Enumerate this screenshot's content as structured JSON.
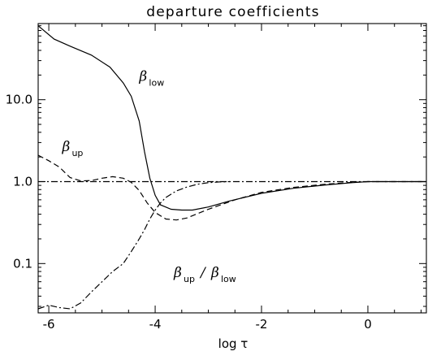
{
  "chart_data": {
    "type": "line",
    "title": "departure coefficients",
    "xlabel": "log τ",
    "ylabel": "",
    "xlim": [
      -6.2,
      1.1
    ],
    "ylim": [
      0.025,
      85
    ],
    "yscale": "log",
    "x_ticks": [
      "-6",
      "-4",
      "-2",
      "0"
    ],
    "x_tick_values": [
      -6,
      -4,
      -2,
      0
    ],
    "y_ticks": [
      "0.1",
      "1.0",
      "10.0"
    ],
    "y_tick_values": [
      0.1,
      1.0,
      10.0
    ],
    "grid": false,
    "series": [
      {
        "name": "β_low",
        "style": "solid",
        "x": [
          -6.2,
          -5.9,
          -5.6,
          -5.2,
          -4.85,
          -4.6,
          -4.45,
          -4.3,
          -4.2,
          -4.1,
          -4.0,
          -3.9,
          -3.7,
          -3.5,
          -3.3,
          -3.0,
          -2.6,
          -2.0,
          -1.4,
          -0.8,
          -0.3,
          0.0,
          0.5,
          1.1
        ],
        "y": [
          80,
          55,
          45,
          35,
          25,
          16,
          11,
          5.5,
          2.3,
          1.1,
          0.68,
          0.52,
          0.46,
          0.45,
          0.45,
          0.49,
          0.58,
          0.72,
          0.83,
          0.91,
          0.97,
          1.0,
          1.0,
          1.0
        ]
      },
      {
        "name": "β_up",
        "style": "dashed",
        "x": [
          -6.2,
          -6.0,
          -5.8,
          -5.6,
          -5.4,
          -5.2,
          -5.0,
          -4.8,
          -4.6,
          -4.45,
          -4.3,
          -4.15,
          -4.0,
          -3.8,
          -3.6,
          -3.4,
          -3.0,
          -2.5,
          -2.0,
          -1.4,
          -0.8,
          -0.3,
          0.0,
          0.5,
          1.1
        ],
        "y": [
          2.1,
          1.8,
          1.5,
          1.12,
          1.02,
          1.03,
          1.1,
          1.15,
          1.1,
          0.98,
          0.78,
          0.55,
          0.42,
          0.35,
          0.34,
          0.36,
          0.46,
          0.6,
          0.74,
          0.85,
          0.93,
          0.98,
          1.0,
          1.0,
          1.0
        ]
      },
      {
        "name": "β_up/β_low",
        "style": "dashdot",
        "x": [
          -6.2,
          -6.0,
          -5.8,
          -5.6,
          -5.4,
          -5.2,
          -5.0,
          -4.8,
          -4.6,
          -4.45,
          -4.3,
          -4.2,
          -4.1,
          -4.0,
          -3.9,
          -3.8,
          -3.6,
          -3.4,
          -3.2,
          -3.0,
          -2.8,
          -2.6
        ],
        "y": [
          0.028,
          0.031,
          0.029,
          0.028,
          0.033,
          0.045,
          0.06,
          0.08,
          0.1,
          0.14,
          0.2,
          0.26,
          0.35,
          0.45,
          0.55,
          0.64,
          0.77,
          0.86,
          0.93,
          0.97,
          0.99,
          1.0
        ]
      },
      {
        "name": "reference",
        "style": "dashdot",
        "x": [
          -6.2,
          1.1
        ],
        "y": [
          1.0,
          1.0
        ]
      }
    ],
    "annotations": [
      {
        "text": "β",
        "sub": "low",
        "x": -4.3,
        "y": 17
      },
      {
        "text": "β",
        "sub": "up",
        "x": -5.75,
        "y": 2.35
      },
      {
        "text": "β",
        "sub": "up",
        "sep": "/",
        "text2": "β",
        "sub2": "low",
        "x": -3.65,
        "y": 0.068
      }
    ]
  }
}
